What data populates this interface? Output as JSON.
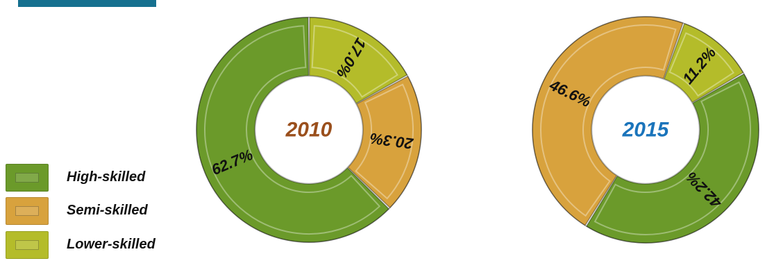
{
  "chart_data": [
    {
      "type": "pie",
      "center_label": "2010",
      "center_color": "#9a4f1c",
      "slices": [
        {
          "label": "Lower-skilled",
          "value": 17.0,
          "display": "17.0%"
        },
        {
          "label": "Semi-skilled",
          "value": 20.3,
          "display": "20.3%"
        },
        {
          "label": "High-skilled",
          "value": 62.7,
          "display": "62.7%"
        }
      ]
    },
    {
      "type": "pie",
      "center_label": "2015",
      "center_color": "#1a74bb",
      "slices": [
        {
          "label": "High-skilled",
          "value": 42.2,
          "display": "42.2%"
        },
        {
          "label": "Semi-skilled",
          "value": 46.6,
          "display": "46.6%"
        },
        {
          "label": "Lower-skilled",
          "value": 11.2,
          "display": "11.2%"
        }
      ]
    }
  ],
  "legend": [
    {
      "label": "High-skilled",
      "color": "#6b9a2a"
    },
    {
      "label": "Semi-skilled",
      "color": "#d8a23d"
    },
    {
      "label": "Lower-skilled",
      "color": "#b4bc2a"
    }
  ],
  "colors": {
    "High-skilled": "#6b9a2a",
    "Semi-skilled": "#d8a23d",
    "Lower-skilled": "#b4bc2a"
  }
}
